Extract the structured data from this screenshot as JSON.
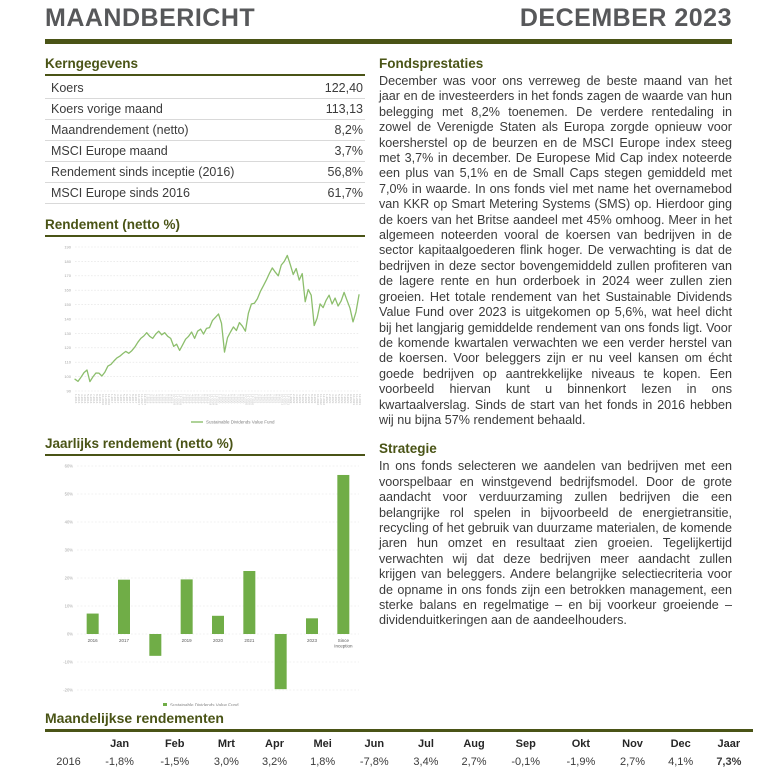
{
  "colors": {
    "accent_olive": "#4a5416",
    "title_gray": "#57585a",
    "line_green": "#8cbe6c",
    "bar_green": "#70ad47",
    "grid_gray": "#e2e2e2",
    "tick_gray": "#a6a6a6"
  },
  "header": {
    "title": "MAANDBERICHT",
    "period": "DECEMBER 2023"
  },
  "kerngegevens": {
    "title": "Kerngegevens",
    "rows": [
      {
        "label": "Koers",
        "value": "122,40"
      },
      {
        "label": "Koers vorige maand",
        "value": "113,13"
      },
      {
        "label": "Maandrendement (netto)",
        "value": "8,2%"
      },
      {
        "label": "MSCI Europe maand",
        "value": "3,7%"
      },
      {
        "label": "Rendement sinds inceptie (2016)",
        "value": "56,8%"
      },
      {
        "label": "MSCI Europe sinds 2016",
        "value": "61,7%"
      }
    ]
  },
  "fondsprestaties": {
    "title": "Fondsprestaties",
    "body": "December was voor ons verreweg de beste maand van het jaar en de investeerders in het fonds zagen de waarde van hun belegging met 8,2% toenemen. De verdere rentedaling in zowel de Verenigde Staten als Europa zorgde opnieuw voor koersherstel op de beurzen en de MSCI Europe index steeg met 3,7% in december. De Europese Mid Cap index noteerde een plus van 5,1% en de Small Caps stegen gemiddeld met 7,0% in waarde. In ons fonds viel met name het overnamebod van KKR op Smart Metering Systems (SMS) op. Hierdoor ging de koers van het Britse aandeel met 45% omhoog. Meer in het algemeen noteerden vooral de koersen van bedrijven in de sector kapitaalgoederen flink hoger. De verwachting is dat de bedrijven in deze sector bovengemiddeld zullen profiteren van de lagere rente en hun orderboek in 2024 weer zullen zien groeien. Het totale rendement van het Sustainable Dividends Value Fund over 2023 is uitgekomen op 5,6%, wat heel dicht bij het langjarig gemiddelde rendement van ons fonds ligt. Voor de komende kwartalen verwachten we een verder herstel van de koersen. Voor beleggers zijn er nu veel kansen om écht goede bedrijven op aantrekkelijke niveaus te kopen. Een voorbeeld hiervan kunt u binnenkort lezen in ons kwartaalverslag. Sinds de start van het fonds in 2016 hebben wij nu bijna 57% rendement behaald."
  },
  "strategie": {
    "title": "Strategie",
    "body": "In ons fonds selecteren we aandelen van bedrijven met een voorspelbaar en winstgevend bedrijfsmodel. Door de grote aandacht voor verduurzaming zullen bedrijven die een belangrijke rol spelen in bijvoorbeeld de energietransitie, recycling of het gebruik van duurzame materialen, de komende jaren hun omzet en resultaat zien groeien. Tegelijkertijd verwachten wij dat deze bedrijven meer aandacht zullen krijgen van beleggers. Andere belangrijke selectiecriteria voor de opname in ons fonds zijn een betrokken management, een sterke balans en regelmatige – en bij voorkeur groeiende – dividenduitkeringen aan de aandeelhouders."
  },
  "monthly_table": {
    "title": "Maandelijkse rendementen",
    "columns": [
      "",
      "Jan",
      "Feb",
      "Mrt",
      "Apr",
      "Mei",
      "Jun",
      "Jul",
      "Aug",
      "Sep",
      "Okt",
      "Nov",
      "Dec",
      "Jaar"
    ],
    "rows": [
      {
        "year": "2016",
        "values": [
          "-1,8%",
          "-1,5%",
          "3,0%",
          "3,2%",
          "1,8%",
          "-7,8%",
          "3,4%",
          "2,7%",
          "-0,1%",
          "-1,9%",
          "2,7%",
          "4,1%",
          "7,3%"
        ]
      }
    ]
  },
  "chart_data": [
    {
      "type": "line",
      "title": "Rendement (netto %)",
      "legend": [
        "Sustainable Dividends Value Fund"
      ],
      "legend_position": "bottom",
      "color": "#8cbe6c",
      "ylim": [
        90,
        190
      ],
      "ytick_step": 10,
      "grid": true,
      "x": [
        "1-2016",
        "2-2016",
        "3-2016",
        "4-2016",
        "5-2016",
        "6-2016",
        "7-2016",
        "8-2016",
        "9-2016",
        "10-2016",
        "11-2016",
        "12-2016",
        "1-2017",
        "2-2017",
        "3-2017",
        "4-2017",
        "5-2017",
        "6-2017",
        "7-2017",
        "8-2017",
        "9-2017",
        "10-2017",
        "11-2017",
        "12-2017",
        "1-2018",
        "2-2018",
        "3-2018",
        "4-2018",
        "5-2018",
        "6-2018",
        "7-2018",
        "8-2018",
        "9-2018",
        "10-2018",
        "11-2018",
        "12-2018",
        "1-2019",
        "2-2019",
        "3-2019",
        "4-2019",
        "5-2019",
        "6-2019",
        "7-2019",
        "8-2019",
        "9-2019",
        "10-2019",
        "11-2019",
        "12-2019",
        "1-2020",
        "2-2020",
        "3-2020",
        "4-2020",
        "5-2020",
        "6-2020",
        "7-2020",
        "8-2020",
        "9-2020",
        "10-2020",
        "11-2020",
        "12-2020",
        "1-2021",
        "2-2021",
        "3-2021",
        "4-2021",
        "5-2021",
        "6-2021",
        "7-2021",
        "8-2021",
        "9-2021",
        "10-2021",
        "11-2021",
        "12-2021",
        "1-2022",
        "2-2022",
        "3-2022",
        "4-2022",
        "5-2022",
        "6-2022",
        "7-2022",
        "8-2022",
        "9-2022",
        "10-2022",
        "11-2022",
        "12-2022",
        "1-2023",
        "2-2023",
        "3-2023",
        "4-2023",
        "5-2023",
        "6-2023",
        "7-2023",
        "8-2023",
        "9-2023",
        "10-2023",
        "11-2023",
        "12-2023"
      ],
      "series": [
        {
          "name": "Sustainable Dividends Value Fund",
          "values": [
            98.2,
            96.7,
            99.6,
            102.8,
            104.6,
            96.5,
            99.8,
            102.5,
            102.4,
            100.4,
            103.1,
            107.3,
            108.5,
            110.8,
            113.0,
            114.2,
            116.0,
            117.5,
            116.2,
            118.0,
            120.5,
            123.8,
            126.5,
            128.2,
            130.5,
            128.0,
            126.5,
            129.5,
            131.5,
            129.0,
            130.5,
            128.0,
            126.5,
            121.0,
            122.5,
            118.2,
            122.0,
            126.0,
            128.0,
            131.0,
            126.5,
            131.5,
            133.0,
            129.5,
            133.5,
            134.0,
            139.0,
            141.2,
            143.5,
            137.0,
            117.0,
            127.0,
            131.0,
            134.5,
            132.0,
            137.5,
            135.0,
            131.5,
            144.0,
            150.4,
            151.0,
            154.0,
            159.0,
            163.0,
            167.0,
            171.5,
            175.5,
            172.5,
            170.0,
            177.5,
            180.0,
            184.2,
            178.0,
            171.0,
            175.0,
            167.0,
            171.5,
            152.0,
            160.5,
            156.5,
            135.5,
            140.5,
            150.5,
            147.9,
            153.0,
            156.5,
            150.5,
            154.5,
            149.0,
            152.5,
            158.5,
            153.0,
            147.5,
            138.0,
            144.9,
            156.8
          ]
        }
      ]
    },
    {
      "type": "bar",
      "title": "Jaarlijks rendement (netto %)",
      "legend": [
        "Sustainable Dividends Value Fund"
      ],
      "legend_position": "bottom",
      "color": "#70ad47",
      "ylim": [
        -20,
        60
      ],
      "ytick_step": 10,
      "grid": true,
      "categories": [
        "2016",
        "2017",
        "2018",
        "2019",
        "2020",
        "2021",
        "2022",
        "2023",
        "Since Inception"
      ],
      "values": [
        7.3,
        19.4,
        -7.8,
        19.5,
        6.5,
        22.5,
        -19.7,
        5.6,
        56.8
      ]
    }
  ]
}
